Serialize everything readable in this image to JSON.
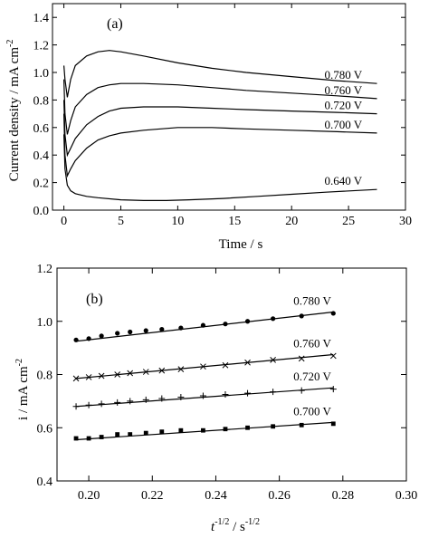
{
  "chart_data": [
    {
      "panel": "(a)",
      "type": "line",
      "xlabel": "Time / s",
      "ylabel": "Current density / mA cm",
      "ylabel_superscript": "-2",
      "xlim": [
        -1,
        30
      ],
      "ylim": [
        0.0,
        1.5
      ],
      "x_ticks": [
        "0",
        "5",
        "10",
        "15",
        "20",
        "25",
        "30"
      ],
      "y_ticks": [
        "0.0",
        "0.2",
        "0.4",
        "0.6",
        "0.8",
        "1.0",
        "1.2",
        "1.4"
      ],
      "series": [
        {
          "name": "0.780 V",
          "x": [
            0,
            0.1,
            0.3,
            0.6,
            1,
            2,
            3,
            4,
            5,
            7,
            10,
            13,
            16,
            20,
            24,
            27.5
          ],
          "y": [
            1.05,
            0.95,
            0.82,
            0.95,
            1.05,
            1.12,
            1.15,
            1.16,
            1.15,
            1.12,
            1.07,
            1.03,
            1.0,
            0.97,
            0.94,
            0.92
          ]
        },
        {
          "name": "0.760 V",
          "x": [
            0,
            0.1,
            0.3,
            0.6,
            1,
            2,
            3,
            4,
            5,
            7,
            10,
            13,
            16,
            20,
            24,
            27.5
          ],
          "y": [
            0.95,
            0.7,
            0.55,
            0.65,
            0.75,
            0.84,
            0.89,
            0.91,
            0.92,
            0.92,
            0.91,
            0.89,
            0.87,
            0.85,
            0.83,
            0.81
          ]
        },
        {
          "name": "0.720 V",
          "x": [
            0,
            0.1,
            0.3,
            0.6,
            1,
            2,
            3,
            4,
            5,
            7,
            10,
            13,
            16,
            20,
            24,
            27.5
          ],
          "y": [
            0.8,
            0.55,
            0.4,
            0.45,
            0.52,
            0.62,
            0.68,
            0.72,
            0.74,
            0.75,
            0.75,
            0.74,
            0.73,
            0.72,
            0.71,
            0.7
          ]
        },
        {
          "name": "0.700 V",
          "x": [
            0,
            0.1,
            0.3,
            0.6,
            1,
            2,
            3,
            4,
            5,
            7,
            10,
            13,
            16,
            20,
            24,
            27.5
          ],
          "y": [
            0.7,
            0.4,
            0.25,
            0.3,
            0.36,
            0.45,
            0.51,
            0.54,
            0.56,
            0.58,
            0.6,
            0.6,
            0.59,
            0.58,
            0.57,
            0.56
          ]
        },
        {
          "name": "0.640 V",
          "x": [
            0,
            0.1,
            0.3,
            0.6,
            1,
            2,
            3,
            5,
            7,
            9,
            11,
            14,
            17,
            20,
            23,
            27.5
          ],
          "y": [
            0.55,
            0.3,
            0.18,
            0.14,
            0.12,
            0.1,
            0.09,
            0.075,
            0.07,
            0.07,
            0.075,
            0.085,
            0.1,
            0.115,
            0.13,
            0.15
          ]
        }
      ]
    },
    {
      "panel": "(b)",
      "type": "scatter",
      "xlabel": "t",
      "xlabel_exponent": "-1/2",
      "xlabel_unit": " / s",
      "xlabel_unit_exponent": "-1/2",
      "ylabel": "i / mA cm",
      "ylabel_superscript": "-2",
      "xlim": [
        0.19,
        0.3
      ],
      "ylim": [
        0.4,
        1.2
      ],
      "x_ticks": [
        "0.20",
        "0.22",
        "0.24",
        "0.26",
        "0.28",
        "0.30"
      ],
      "y_ticks": [
        "0.4",
        "0.6",
        "0.8",
        "1.0",
        "1.2"
      ],
      "x": [
        0.196,
        0.2,
        0.204,
        0.209,
        0.213,
        0.218,
        0.223,
        0.229,
        0.236,
        0.243,
        0.25,
        0.258,
        0.267,
        0.277
      ],
      "series": [
        {
          "name": "0.780 V",
          "marker": "circle",
          "values": [
            0.93,
            0.935,
            0.945,
            0.955,
            0.96,
            0.965,
            0.97,
            0.975,
            0.985,
            0.99,
            1.0,
            1.01,
            1.02,
            1.03
          ],
          "fit": [
            0.925,
            1.035
          ]
        },
        {
          "name": "0.760 V",
          "marker": "x",
          "values": [
            0.785,
            0.79,
            0.795,
            0.8,
            0.805,
            0.81,
            0.815,
            0.82,
            0.83,
            0.835,
            0.845,
            0.855,
            0.86,
            0.87
          ],
          "fit": [
            0.785,
            0.875
          ]
        },
        {
          "name": "0.720 V",
          "marker": "plus",
          "values": [
            0.68,
            0.685,
            0.69,
            0.695,
            0.7,
            0.705,
            0.71,
            0.715,
            0.72,
            0.725,
            0.73,
            0.735,
            0.74,
            0.745
          ],
          "fit": [
            0.68,
            0.75
          ]
        },
        {
          "name": "0.700 V",
          "marker": "square",
          "values": [
            0.56,
            0.56,
            0.565,
            0.575,
            0.575,
            0.58,
            0.585,
            0.59,
            0.59,
            0.595,
            0.6,
            0.605,
            0.61,
            0.615
          ],
          "fit": [
            0.555,
            0.62
          ]
        }
      ]
    }
  ]
}
